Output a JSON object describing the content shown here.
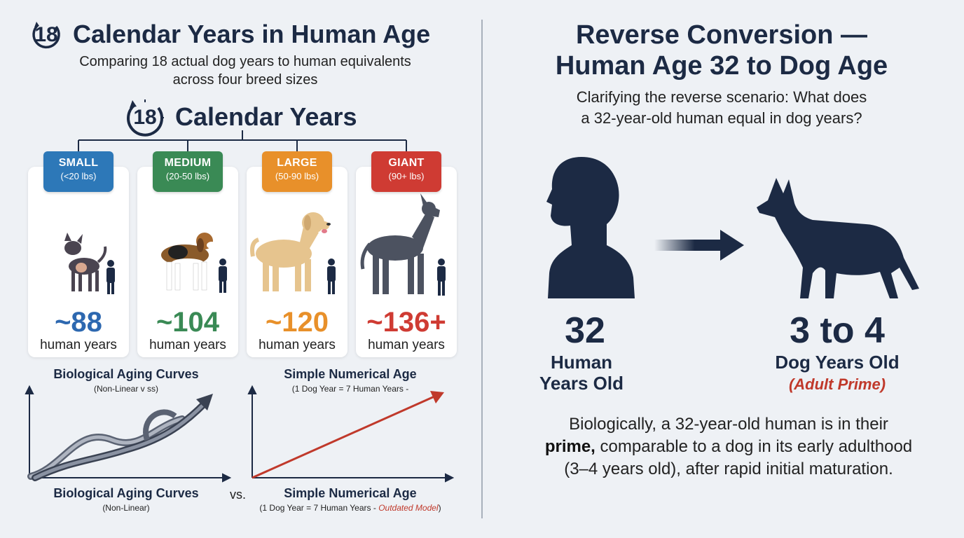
{
  "left": {
    "title_number": "18",
    "title": "Calendar Years in Human Age",
    "subtitle_line1": "Comparing 18 actual dog years to human equivalents",
    "subtitle_line2": "across four breed sizes",
    "years_number": "18",
    "years_label": "Calendar Years",
    "breeds": [
      {
        "name": "SMALL",
        "range": "(<20 lbs)",
        "age": "~88",
        "unit": "human years",
        "color": "#2d78b8"
      },
      {
        "name": "MEDIUM",
        "range": "(20-50 lbs)",
        "age": "~104",
        "unit": "human years",
        "color": "#3a8a55"
      },
      {
        "name": "LARGE",
        "range": "(50-90 lbs)",
        "age": "~120",
        "unit": "human years",
        "color": "#e8902a"
      },
      {
        "name": "GIANT",
        "range": "(90+ lbs)",
        "age": "~136+",
        "unit": "human years",
        "color": "#cf3b33"
      }
    ],
    "age_colors": [
      "#2d68b0",
      "#3a8a55",
      "#e8902a",
      "#cf3b33"
    ],
    "chart_left": {
      "title_top": "Biological Aging Curves",
      "sub_top": "(Non-Linear v ss)",
      "title_bottom": "Biological Aging Curves",
      "sub_bottom": "(Non-Linear)"
    },
    "vs": "vs.",
    "chart_right": {
      "title_top": "Simple Numerical Age",
      "sub_top": "(1 Dog Year = 7 Human Years -",
      "title_bottom": "Simple Numerical Age",
      "sub_bottom_a": "(1 Dog Year = 7 Human Years - ",
      "sub_bottom_b": "Outdated Model",
      "sub_bottom_c": ")"
    }
  },
  "right": {
    "title_line1": "Reverse Conversion —",
    "title_line2": "Human Age 32 to Dog Age",
    "sub_line1": "Clarifying the reverse scenario: What does",
    "sub_line2": "a 32-year-old human equal in dog years?",
    "human_num": "32",
    "human_lbl1": "Human",
    "human_lbl2": "Years Old",
    "dog_num": "3 to 4",
    "dog_lbl": "Dog Years Old",
    "dog_note": "(Adult Prime)",
    "body_a": "Biologically, a 32-year-old human is in their",
    "body_b_bold": "prime,",
    "body_b": " comparable to a dog in its early adulthood",
    "body_c": "(3–4 years old), after rapid initial maturation."
  },
  "colors": {
    "navy": "#1c2a44",
    "red_accent": "#c0392b"
  }
}
